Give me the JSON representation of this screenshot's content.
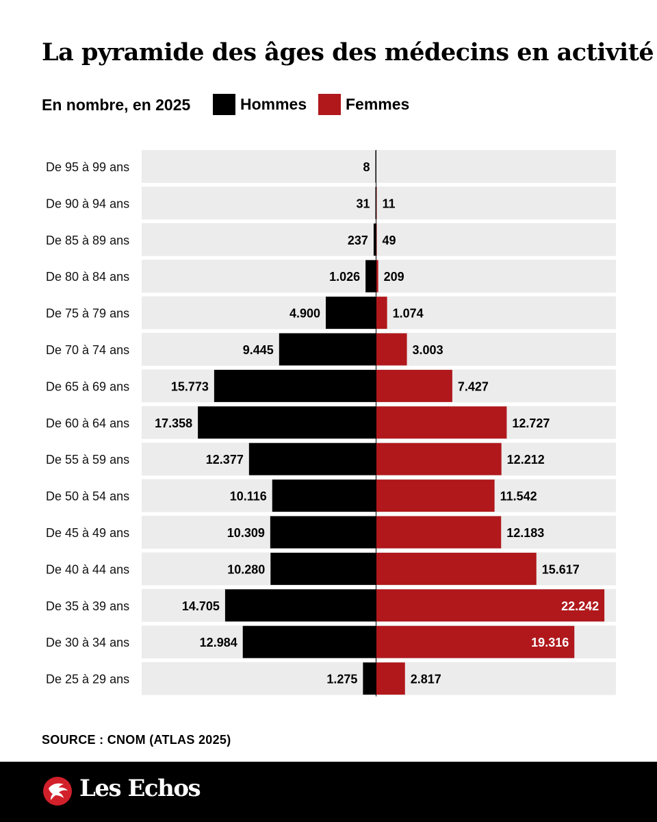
{
  "title": "La pyramide des âges des médecins en activité",
  "subtitle": "En nombre, en 2025",
  "legend": {
    "hommes": {
      "label": "Hommes",
      "color": "#000000"
    },
    "femmes": {
      "label": "Femmes",
      "color": "#b0181c"
    }
  },
  "chart_data": {
    "type": "bar",
    "orientation": "horizontal-pyramid",
    "title": "La pyramide des âges des médecins en activité",
    "subtitle": "En nombre, en 2025",
    "categories": [
      "De 95 à 99 ans",
      "De 90 à 94 ans",
      "De 85 à 89 ans",
      "De 80 à 84 ans",
      "De 75 à 79 ans",
      "De 70 à 74 ans",
      "De 65 à 69 ans",
      "De 60 à 64 ans",
      "De 55 à 59 ans",
      "De 50 à 54 ans",
      "De 45 à 49 ans",
      "De 40 à 44 ans",
      "De 35 à 39 ans",
      "De 30 à 34 ans",
      "De 25 à 29 ans"
    ],
    "series": [
      {
        "name": "Hommes",
        "color": "#000000",
        "side": "left",
        "values": [
          8,
          31,
          237,
          1026,
          4900,
          9445,
          15773,
          17358,
          12377,
          10116,
          10309,
          10280,
          14705,
          12984,
          1275
        ],
        "labels": [
          "8",
          "31",
          "237",
          "1.026",
          "4.900",
          "9.445",
          "15.773",
          "17.358",
          "12.377",
          "10.116",
          "10.309",
          "10.280",
          "14.705",
          "12.984",
          "1.275"
        ]
      },
      {
        "name": "Femmes",
        "color": "#b0181c",
        "side": "right",
        "values": [
          null,
          11,
          49,
          209,
          1074,
          3003,
          7427,
          12727,
          12212,
          11542,
          12183,
          15617,
          22242,
          19316,
          2817
        ],
        "labels": [
          "",
          "11",
          "49",
          "209",
          "1.074",
          "3.003",
          "7.427",
          "12.727",
          "12.212",
          "11.542",
          "12.183",
          "15.617",
          "22.242",
          "19.316",
          "2.817"
        ]
      }
    ],
    "xlim": [
      0,
      23000
    ],
    "grid": false,
    "legend_position": "top-left"
  },
  "source": "SOURCE : CNOM (ATLAS 2025)",
  "footer": {
    "brand": "Les Echos"
  }
}
